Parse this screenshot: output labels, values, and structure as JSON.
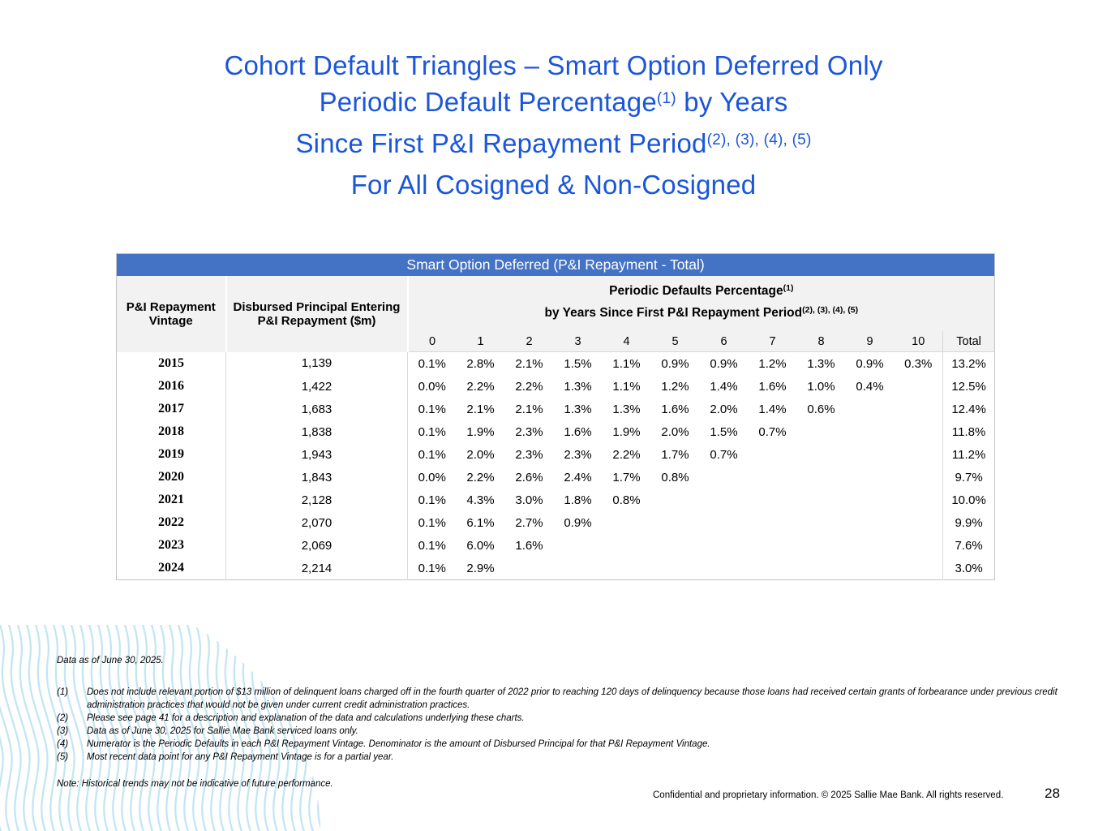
{
  "title": {
    "line1": "Cohort Default Triangles – Smart Option Deferred Only",
    "line2_pre": "Periodic Default Percentage",
    "line2_sup": "(1)",
    "line2_post": " by Years",
    "line3_pre": "Since First P&I Repayment Period",
    "line3_sup": "(2), (3), (4), (5)",
    "line4": "For All Cosigned & Non-Cosigned"
  },
  "table": {
    "caption": "Smart Option Deferred (P&I Repayment - Total)",
    "col1_header": "P&I Repayment Vintage",
    "col2_header": "Disbursed Principal Entering P&I Repayment ($m)",
    "group_header_line1": "Periodic Defaults Percentage",
    "group_header_sup1": "(1)",
    "group_header_line2": "by Years Since First P&I Repayment Period",
    "group_header_sup2": "(2), (3), (4), (5)",
    "year_columns": [
      "0",
      "1",
      "2",
      "3",
      "4",
      "5",
      "6",
      "7",
      "8",
      "9",
      "10",
      "Total"
    ],
    "rows": [
      {
        "vintage": "2015",
        "principal": "1,139",
        "values": [
          "0.1%",
          "2.8%",
          "2.1%",
          "1.5%",
          "1.1%",
          "0.9%",
          "0.9%",
          "1.2%",
          "1.3%",
          "0.9%",
          "0.3%"
        ],
        "total": "13.2%"
      },
      {
        "vintage": "2016",
        "principal": "1,422",
        "values": [
          "0.0%",
          "2.2%",
          "2.2%",
          "1.3%",
          "1.1%",
          "1.2%",
          "1.4%",
          "1.6%",
          "1.0%",
          "0.4%"
        ],
        "total": "12.5%"
      },
      {
        "vintage": "2017",
        "principal": "1,683",
        "values": [
          "0.1%",
          "2.1%",
          "2.1%",
          "1.3%",
          "1.3%",
          "1.6%",
          "2.0%",
          "1.4%",
          "0.6%"
        ],
        "total": "12.4%"
      },
      {
        "vintage": "2018",
        "principal": "1,838",
        "values": [
          "0.1%",
          "1.9%",
          "2.3%",
          "1.6%",
          "1.9%",
          "2.0%",
          "1.5%",
          "0.7%"
        ],
        "total": "11.8%"
      },
      {
        "vintage": "2019",
        "principal": "1,943",
        "values": [
          "0.1%",
          "2.0%",
          "2.3%",
          "2.3%",
          "2.2%",
          "1.7%",
          "0.7%"
        ],
        "total": "11.2%"
      },
      {
        "vintage": "2020",
        "principal": "1,843",
        "values": [
          "0.0%",
          "2.2%",
          "2.6%",
          "2.4%",
          "1.7%",
          "0.8%"
        ],
        "total": "9.7%"
      },
      {
        "vintage": "2021",
        "principal": "2,128",
        "values": [
          "0.1%",
          "4.3%",
          "3.0%",
          "1.8%",
          "0.8%"
        ],
        "total": "10.0%"
      },
      {
        "vintage": "2022",
        "principal": "2,070",
        "values": [
          "0.1%",
          "6.1%",
          "2.7%",
          "0.9%"
        ],
        "total": "9.9%"
      },
      {
        "vintage": "2023",
        "principal": "2,069",
        "values": [
          "0.1%",
          "6.0%",
          "1.6%"
        ],
        "total": "7.6%"
      },
      {
        "vintage": "2024",
        "principal": "2,214",
        "values": [
          "0.1%",
          "2.9%"
        ],
        "total": "3.0%"
      }
    ]
  },
  "footnotes": {
    "data_as_of": "Data as of June 30, 2025.",
    "items": [
      {
        "num": "(1)",
        "text": "Does not include relevant portion of $13 million of delinquent loans charged off in the fourth quarter of 2022 prior to reaching 120 days of delinquency because those loans had received certain grants of forbearance under previous credit administration practices that would not be given under current credit administration practices."
      },
      {
        "num": "(2)",
        "text": "Please see page 41 for a description and explanation of the data and calculations underlying these charts."
      },
      {
        "num": "(3)",
        "text": "Data as of June 30, 2025 for Sallie Mae Bank serviced loans only."
      },
      {
        "num": "(4)",
        "text": "Numerator is the Periodic Defaults in each P&I Repayment Vintage. Denominator is the amount of Disbursed Principal for that P&I Repayment Vintage."
      },
      {
        "num": "(5)",
        "text": "Most recent data point for any P&I Repayment Vintage is for a partial year."
      }
    ],
    "note": "Note: Historical trends may not be indicative of future performance."
  },
  "footer": {
    "copyright": "Confidential and proprietary information. © 2025 Sallie Mae Bank. All rights reserved.",
    "page_number": "28"
  },
  "colors": {
    "title-blue": "#1a56db",
    "banner-blue": "#4472c4",
    "header-gray": "#f2f2f2",
    "wave-blue": "#c3e5f4"
  }
}
